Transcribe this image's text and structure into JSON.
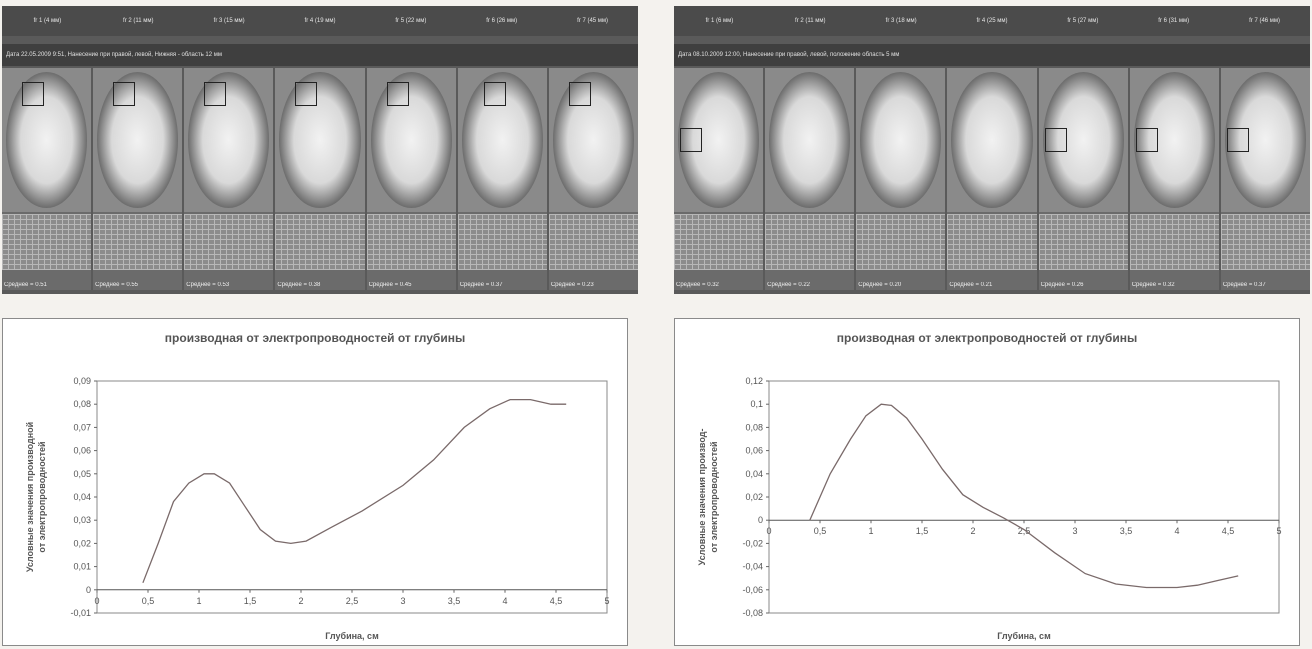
{
  "panels": [
    {
      "scan": {
        "freq_labels": [
          "fr 1 (4 мм)",
          "fr 2 (11 мм)",
          "fr 3 (15 мм)",
          "fr 4 (19 мм)",
          "fr 5 (22 мм)",
          "fr 6 (26 мм)",
          "fr 7 (45 мм)"
        ],
        "info": "Дата 22.05.2009 9:51, Нанесение при правой, левой, Нижняя - область 12 мм",
        "frames": [
          {
            "value": "Среднее = 0.51",
            "sub": "С.К.О. = 0.15"
          },
          {
            "value": "Среднее = 0.55",
            "sub": "С.К.О. = 0.14"
          },
          {
            "value": "Среднее = 0.53",
            "sub": "С.К.О. = 0.14"
          },
          {
            "value": "Среднее = 0.38",
            "sub": "С.К.О. = 0.11"
          },
          {
            "value": "Среднее = 0.45",
            "sub": "С.К.О. = 0.13"
          },
          {
            "value": "Среднее = 0.37",
            "sub": "С.К.О. = 0.09"
          },
          {
            "value": "Среднее = 0.23",
            "sub": "С.К.О. = 0.07"
          }
        ]
      },
      "chart": {
        "title": "производная от электропроводностей от глубины",
        "ylabel_line1": "Условные значения производной",
        "ylabel_line2": "от электропроводностей",
        "xlabel": "Глубина, см"
      }
    },
    {
      "scan": {
        "freq_labels": [
          "fr 1 (6 мм)",
          "fr 2 (11 мм)",
          "fr 3 (18 мм)",
          "fr 4 (25 мм)",
          "fr 5 (27 мм)",
          "fr 6 (31 мм)",
          "fr 7 (46 мм)"
        ],
        "info": "Дата 08.10.2009 12:00, Нанесение при правой, левой, положение область 5 мм",
        "frames": [
          {
            "value": "Среднее = 0.32",
            "sub": ""
          },
          {
            "value": "Среднее = 0.22",
            "sub": ""
          },
          {
            "value": "Среднее = 0.20",
            "sub": ""
          },
          {
            "value": "Среднее = 0.21",
            "sub": ""
          },
          {
            "value": "Среднее = 0.26",
            "sub": ""
          },
          {
            "value": "Среднее = 0.32",
            "sub": ""
          },
          {
            "value": "Среднее = 0.37",
            "sub": ""
          }
        ]
      },
      "chart": {
        "title": "производная от электропроводностей от глубины",
        "ylabel_line1": "Условные значения производ-",
        "ylabel_line2": "от электропроводностей",
        "xlabel": "Глубина, см"
      }
    }
  ],
  "chart_data": [
    {
      "type": "line",
      "title": "производная от электропроводностей от глубины",
      "xlabel": "Глубина, см",
      "ylabel": "Условные значения производной от электропроводностей",
      "xlim": [
        0,
        5
      ],
      "ylim": [
        -0.01,
        0.09
      ],
      "x_ticks": [
        "0",
        "0,5",
        "1",
        "1,5",
        "2",
        "2,5",
        "3",
        "3,5",
        "4",
        "4,5",
        "5"
      ],
      "y_ticks": [
        "-0,01",
        "0",
        "0,01",
        "0,02",
        "0,03",
        "0,04",
        "0,05",
        "0,06",
        "0,07",
        "0,08",
        "0,09"
      ],
      "grid": false,
      "line_color": "#7a6a6a",
      "series": [
        {
          "x": [
            0.45,
            0.6,
            0.75,
            0.9,
            1.05,
            1.15,
            1.3,
            1.45,
            1.6,
            1.75,
            1.9,
            2.05,
            2.3,
            2.6,
            3.0,
            3.3,
            3.6,
            3.85,
            4.05,
            4.25,
            4.45,
            4.6
          ],
          "y": [
            0.003,
            0.02,
            0.038,
            0.046,
            0.05,
            0.05,
            0.046,
            0.036,
            0.026,
            0.021,
            0.02,
            0.021,
            0.027,
            0.034,
            0.045,
            0.056,
            0.07,
            0.078,
            0.082,
            0.082,
            0.08,
            0.08
          ]
        }
      ]
    },
    {
      "type": "line",
      "title": "производная от электропроводностей от глубины",
      "xlabel": "Глубина, см",
      "ylabel": "Условные значения производ- от электропроводностей",
      "xlim": [
        0,
        5
      ],
      "ylim": [
        -0.08,
        0.12
      ],
      "x_ticks": [
        "0",
        "0,5",
        "1",
        "1,5",
        "2",
        "2,5",
        "3",
        "3,5",
        "4",
        "4,5",
        "5"
      ],
      "y_ticks": [
        "-0,08",
        "-0,06",
        "-0,04",
        "-0,02",
        "0",
        "0,02",
        "0,04",
        "0,06",
        "0,08",
        "0,1",
        "0,12"
      ],
      "grid": false,
      "line_color": "#7a6a6a",
      "series": [
        {
          "x": [
            0.4,
            0.6,
            0.8,
            0.95,
            1.1,
            1.2,
            1.35,
            1.5,
            1.7,
            1.9,
            2.1,
            2.3,
            2.5,
            2.8,
            3.1,
            3.4,
            3.7,
            4.0,
            4.2,
            4.4,
            4.6
          ],
          "y": [
            0.0,
            0.04,
            0.07,
            0.09,
            0.1,
            0.099,
            0.088,
            0.07,
            0.044,
            0.022,
            0.011,
            0.002,
            -0.008,
            -0.028,
            -0.046,
            -0.055,
            -0.058,
            -0.058,
            -0.056,
            -0.052,
            -0.048
          ]
        }
      ]
    }
  ]
}
